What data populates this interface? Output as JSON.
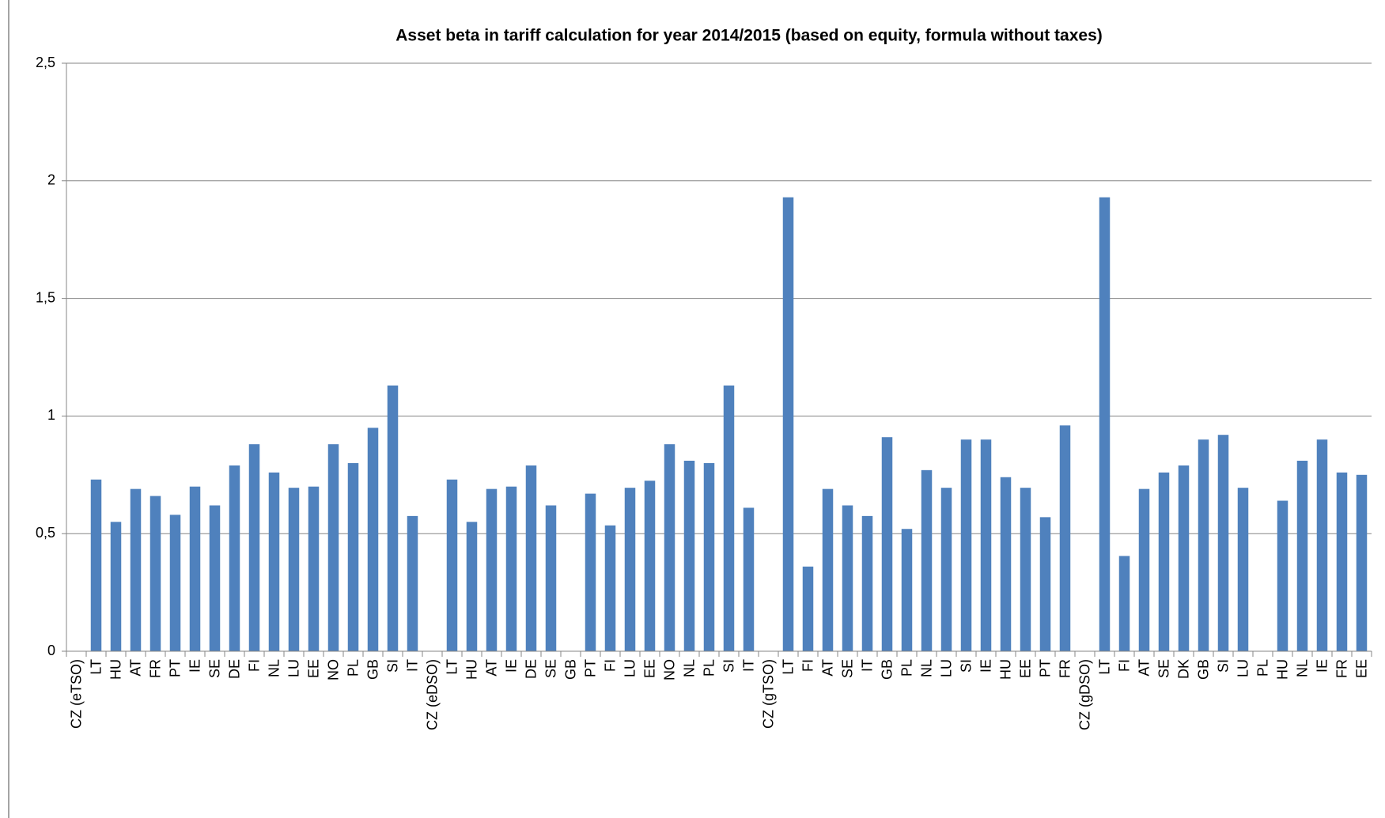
{
  "chart_data": {
    "type": "bar",
    "title": "Asset beta in tariff calculation for year 2014/2015 (based on equity, formula without taxes)",
    "categories": [
      "CZ (eTSO)",
      "LT",
      "HU",
      "AT",
      "FR",
      "PT",
      "IE",
      "SE",
      "DE",
      "FI",
      "NL",
      "LU",
      "EE",
      "NO",
      "PL",
      "GB",
      "SI",
      "IT",
      "CZ (eDSO)",
      "LT",
      "HU",
      "AT",
      "IE",
      "DE",
      "SE",
      "GB",
      "PT",
      "FI",
      "LU",
      "EE",
      "NO",
      "NL",
      "PL",
      "SI",
      "IT",
      "CZ (gTSO)",
      "LT",
      "FI",
      "AT",
      "SE",
      "IT",
      "GB",
      "PL",
      "NL",
      "LU",
      "SI",
      "IE",
      "HU",
      "EE",
      "PT",
      "FR",
      "CZ (gDSO)",
      "LT",
      "FI",
      "AT",
      "SE",
      "DK",
      "GB",
      "SI",
      "LU",
      "PL",
      "HU",
      "NL",
      "IE",
      "FR",
      "EE"
    ],
    "values": [
      null,
      0.73,
      0.55,
      0.69,
      0.66,
      0.58,
      0.7,
      0.62,
      0.79,
      0.88,
      0.76,
      0.695,
      0.7,
      0.88,
      0.8,
      0.95,
      1.13,
      0.575,
      null,
      0.73,
      0.55,
      0.69,
      0.7,
      0.79,
      0.62,
      null,
      0.67,
      0.535,
      0.695,
      0.725,
      0.88,
      0.81,
      0.8,
      1.13,
      0.61,
      null,
      1.93,
      0.36,
      0.69,
      0.62,
      0.575,
      0.91,
      0.52,
      0.77,
      0.695,
      0.9,
      0.9,
      0.74,
      0.695,
      0.57,
      0.96,
      null,
      1.93,
      0.405,
      0.69,
      0.76,
      0.79,
      0.9,
      0.92,
      0.695,
      null,
      0.64,
      0.81,
      0.9,
      0.76,
      0.75
    ],
    "color": "#4f81bd",
    "ylim": [
      0,
      2.5
    ],
    "yticks": [
      0,
      {
        "value": 0.5,
        "label": "0,5"
      },
      1,
      {
        "value": 1.5,
        "label": "1,5"
      },
      2,
      {
        "value": 2.5,
        "label": "2,5"
      }
    ],
    "grid": true
  }
}
